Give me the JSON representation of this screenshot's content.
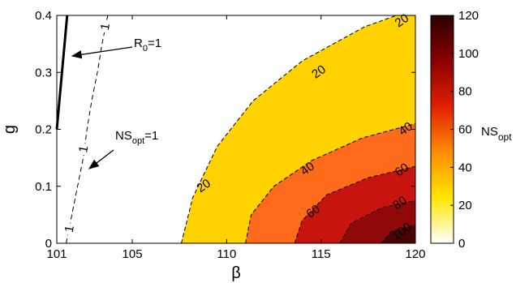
{
  "chart_data": {
    "type": "contour",
    "xlabel": "β",
    "ylabel": "g",
    "xlim": [
      101,
      120
    ],
    "ylim": [
      0,
      0.4
    ],
    "xticks": [
      "101",
      "105",
      "110",
      "115",
      "120"
    ],
    "yticks": [
      "0",
      "0.1",
      "0.2",
      "0.3",
      "0.4"
    ],
    "grid": false,
    "colorbar": {
      "label": "NS",
      "label_sub": "opt",
      "range": [
        0,
        120
      ],
      "ticks": [
        "0",
        "20",
        "40",
        "60",
        "80",
        "100",
        "120"
      ],
      "colormap": [
        "#ffffff",
        "#ffe600",
        "#ff8c00",
        "#e02000",
        "#8b0000",
        "#2a0000"
      ]
    },
    "fill_levels": [
      {
        "level": 20,
        "color": "#ffd200",
        "boundary": [
          [
            107.6,
            0
          ],
          [
            108.2,
            0.08
          ],
          [
            109.5,
            0.17
          ],
          [
            111.4,
            0.25
          ],
          [
            114.0,
            0.32
          ],
          [
            117.3,
            0.38
          ],
          [
            119.0,
            0.4
          ],
          [
            120,
            0.4
          ]
        ]
      },
      {
        "level": 40,
        "color": "#ff6b1a",
        "boundary": [
          [
            111.0,
            0
          ],
          [
            111.3,
            0.05
          ],
          [
            112.5,
            0.1
          ],
          [
            114.5,
            0.145
          ],
          [
            117.2,
            0.185
          ],
          [
            120,
            0.21
          ]
        ]
      },
      {
        "level": 60,
        "color": "#c8140e",
        "boundary": [
          [
            113.6,
            0
          ],
          [
            114.0,
            0.04
          ],
          [
            115.3,
            0.085
          ],
          [
            117.5,
            0.115
          ],
          [
            120,
            0.135
          ]
        ]
      },
      {
        "level": 80,
        "color": "#900808",
        "boundary": [
          [
            116.0,
            0
          ],
          [
            116.6,
            0.035
          ],
          [
            118.2,
            0.062
          ],
          [
            120,
            0.075
          ]
        ]
      },
      {
        "level": 100,
        "color": "#4a0303",
        "boundary": [
          [
            118.2,
            0
          ],
          [
            118.7,
            0.02
          ],
          [
            120,
            0.032
          ]
        ]
      }
    ],
    "contour_labels": [
      {
        "text": "20",
        "x": 119.3,
        "y": 0.39
      },
      {
        "text": "20",
        "x": 114.9,
        "y": 0.3
      },
      {
        "text": "20",
        "x": 108.8,
        "y": 0.1
      },
      {
        "text": "40",
        "x": 119.5,
        "y": 0.2
      },
      {
        "text": "40",
        "x": 114.3,
        "y": 0.13
      },
      {
        "text": "60",
        "x": 119.3,
        "y": 0.128
      },
      {
        "text": "60",
        "x": 114.6,
        "y": 0.055
      },
      {
        "text": "80",
        "x": 119.2,
        "y": 0.07
      },
      {
        "text": "100",
        "x": 119.3,
        "y": 0.02
      }
    ],
    "r0_line": {
      "label": "R",
      "label_sub": "0",
      "label_suffix": "=1",
      "points": [
        [
          101,
          0.2
        ],
        [
          101.55,
          0.4
        ]
      ]
    },
    "ns_one_line": {
      "label": "NS",
      "label_sub": "opt",
      "label_suffix": "=1",
      "points": [
        [
          101.5,
          0
        ],
        [
          101.8,
          0.05
        ],
        [
          102.1,
          0.1
        ],
        [
          102.4,
          0.15
        ],
        [
          102.6,
          0.2
        ],
        [
          102.85,
          0.25
        ],
        [
          103.15,
          0.3
        ],
        [
          103.4,
          0.35
        ],
        [
          103.7,
          0.4
        ]
      ],
      "inline_labels": [
        {
          "text": "1",
          "x": 101.7,
          "y": 0.025
        },
        {
          "text": "1",
          "x": 102.45,
          "y": 0.165
        },
        {
          "text": "1",
          "x": 103.6,
          "y": 0.38
        }
      ]
    }
  }
}
